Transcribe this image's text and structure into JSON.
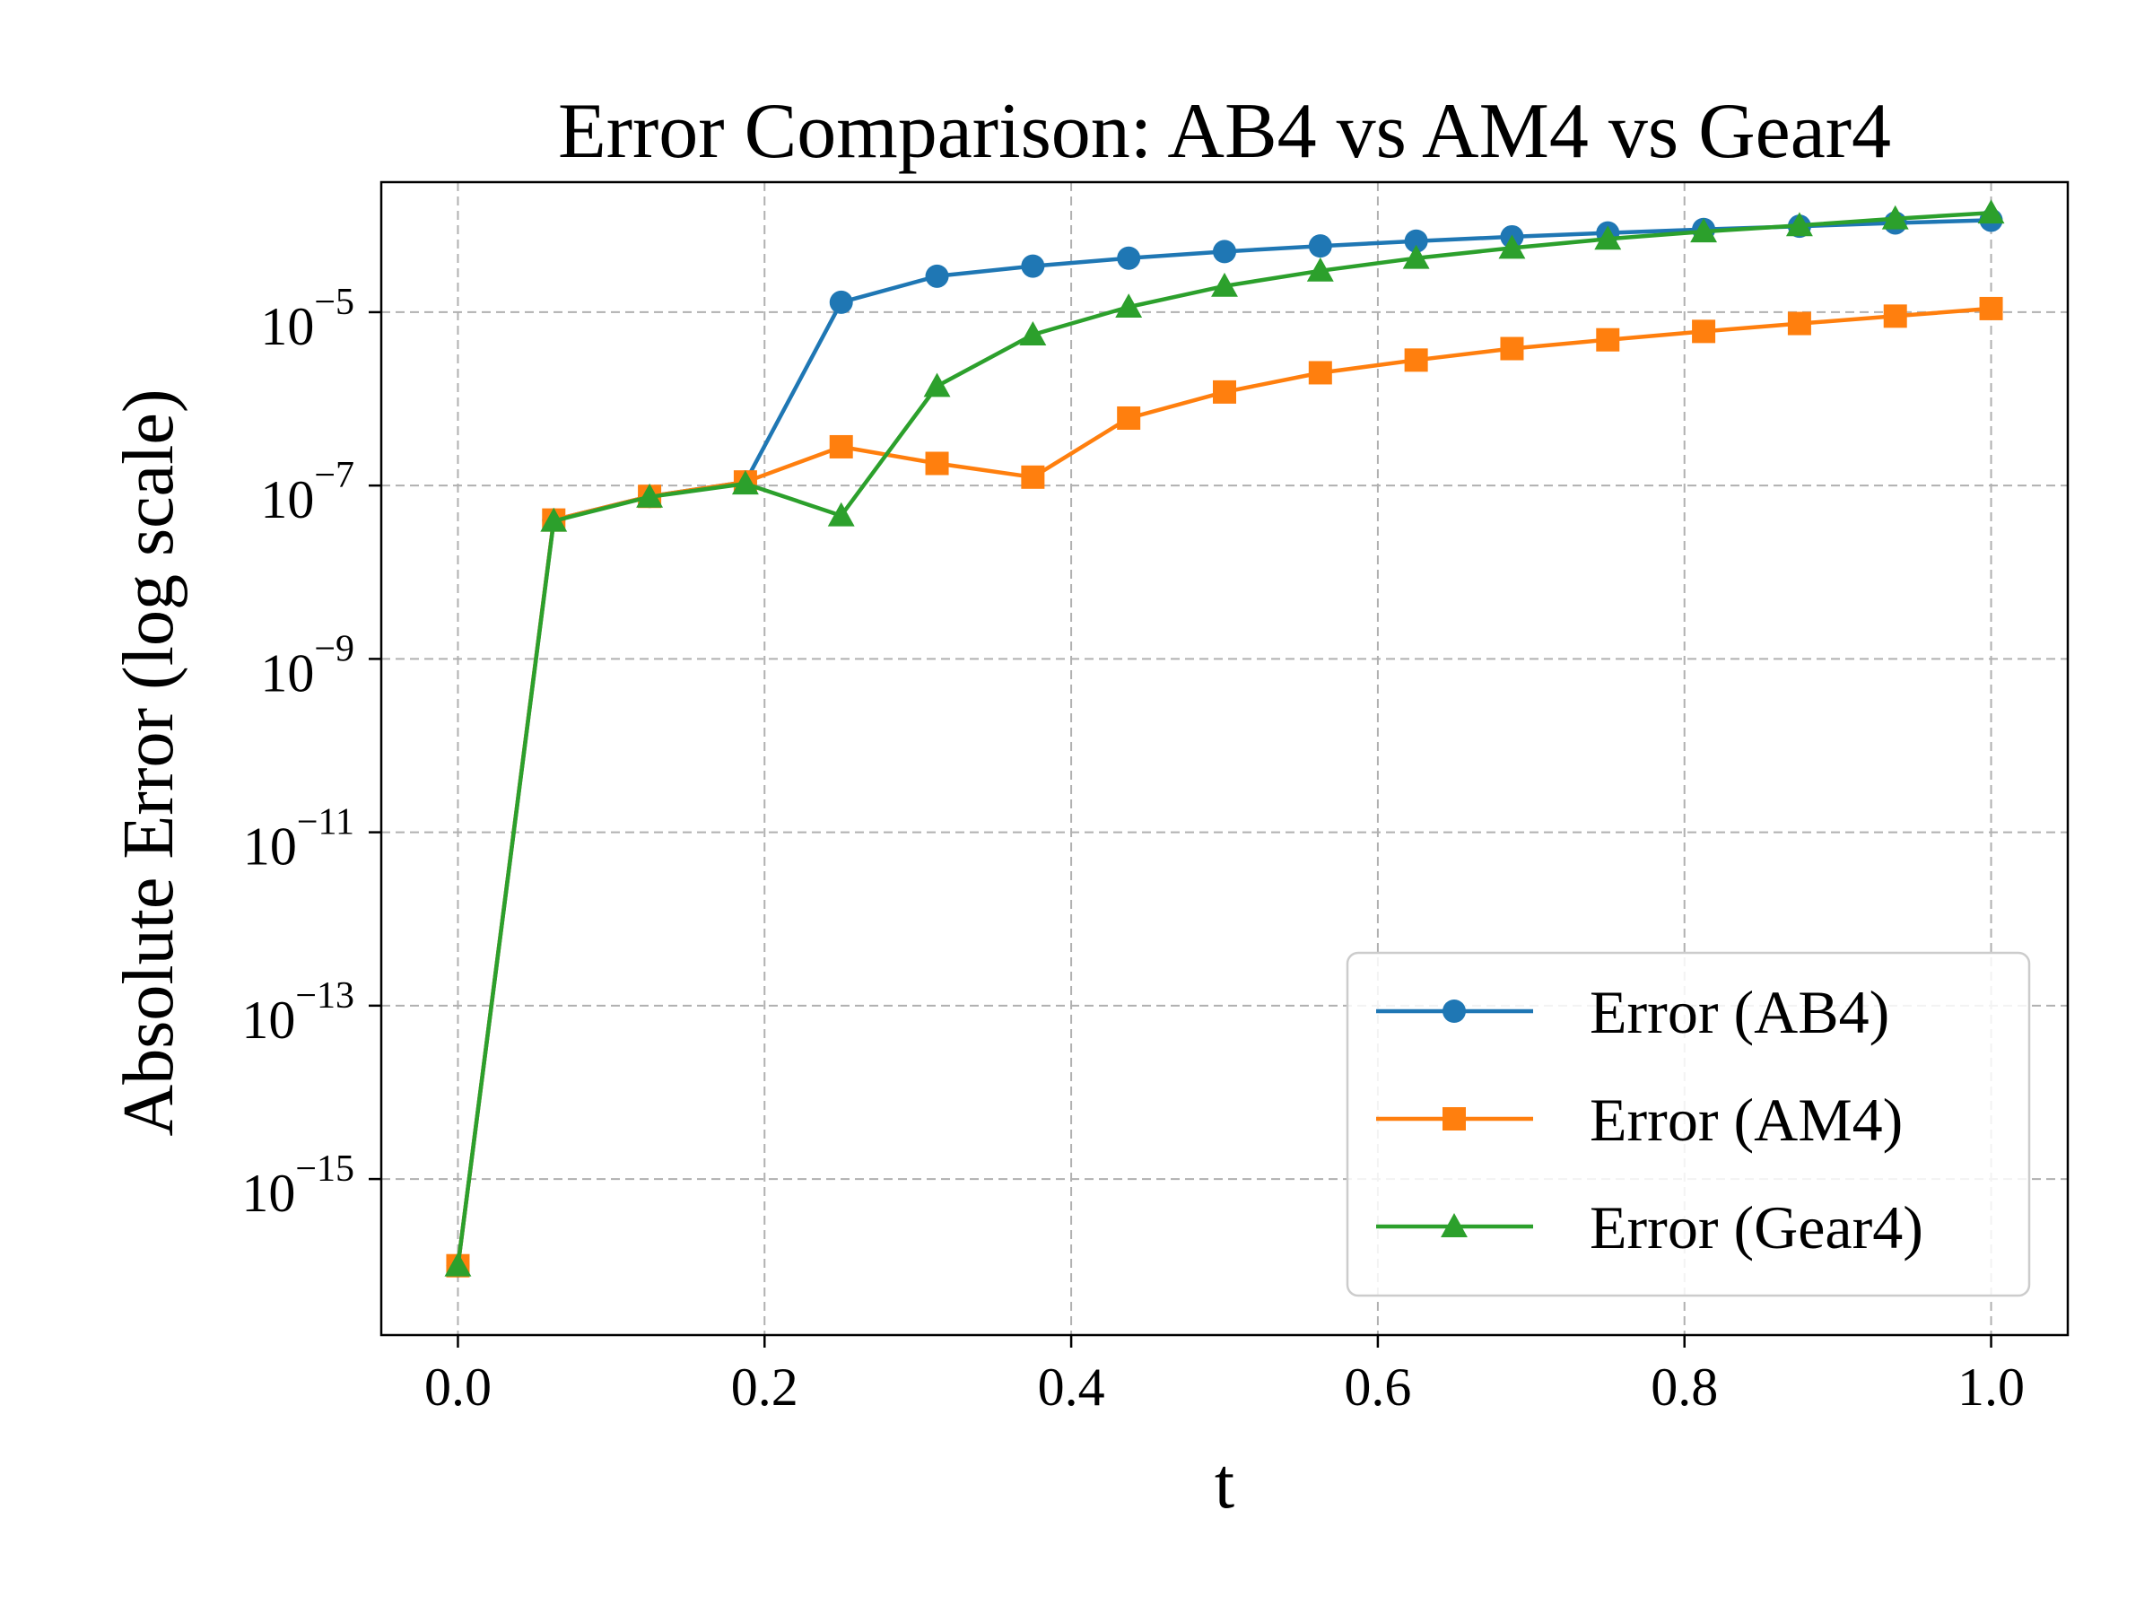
{
  "chart_data": {
    "type": "line",
    "title": "Error Comparison: AB4 vs AM4 vs Gear4",
    "xlabel": "t",
    "ylabel": "Absolute Error (log scale)",
    "xlim": [
      -0.05,
      1.05
    ],
    "ylim_log10": [
      -16.8,
      -3.5
    ],
    "yscale": "log",
    "grid": true,
    "legend_position": "lower-right",
    "x_ticks": [
      0.0,
      0.2,
      0.4,
      0.6,
      0.8,
      1.0
    ],
    "x_tick_labels": [
      "0.0",
      "0.2",
      "0.4",
      "0.6",
      "0.8",
      "1.0"
    ],
    "y_ticks": [
      {
        "base": "10",
        "exp": "−5",
        "log10": -5
      },
      {
        "base": "10",
        "exp": "−7",
        "log10": -7
      },
      {
        "base": "10",
        "exp": "−9",
        "log10": -9
      },
      {
        "base": "10",
        "exp": "−11",
        "log10": -11
      },
      {
        "base": "10",
        "exp": "−13",
        "log10": -13
      },
      {
        "base": "10",
        "exp": "−15",
        "log10": -15
      }
    ],
    "x": [
      0.0,
      0.0625,
      0.125,
      0.1875,
      0.25,
      0.3125,
      0.375,
      0.4375,
      0.5,
      0.5625,
      0.625,
      0.6875,
      0.75,
      0.8125,
      0.875,
      0.9375,
      1.0
    ],
    "series": [
      {
        "name": "Error (AB4)",
        "color": "#1f77b4",
        "marker": "circle",
        "values": [
          1e-16,
          4e-08,
          7.5e-08,
          1.1e-07,
          1.3e-05,
          2.6e-05,
          3.4e-05,
          4.2e-05,
          5e-05,
          5.8e-05,
          6.6e-05,
          7.4e-05,
          8.2e-05,
          9e-05,
          9.8e-05,
          0.000107,
          0.000115
        ]
      },
      {
        "name": "Error (AM4)",
        "color": "#ff7f0e",
        "marker": "square",
        "values": [
          1e-16,
          4e-08,
          7.5e-08,
          1.1e-07,
          2.8e-07,
          1.8e-07,
          1.25e-07,
          6e-07,
          1.2e-06,
          2e-06,
          2.8e-06,
          3.8e-06,
          4.8e-06,
          6e-06,
          7.4e-06,
          9e-06,
          1.1e-05
        ]
      },
      {
        "name": "Error (Gear4)",
        "color": "#2ca02c",
        "marker": "triangle",
        "values": [
          1e-16,
          3.9e-08,
          7.4e-08,
          1.05e-07,
          4.5e-08,
          1.4e-06,
          5.5e-06,
          1.15e-05,
          2e-05,
          3e-05,
          4.2e-05,
          5.5e-05,
          7e-05,
          8.5e-05,
          0.0001,
          0.00012,
          0.00014
        ]
      }
    ]
  }
}
